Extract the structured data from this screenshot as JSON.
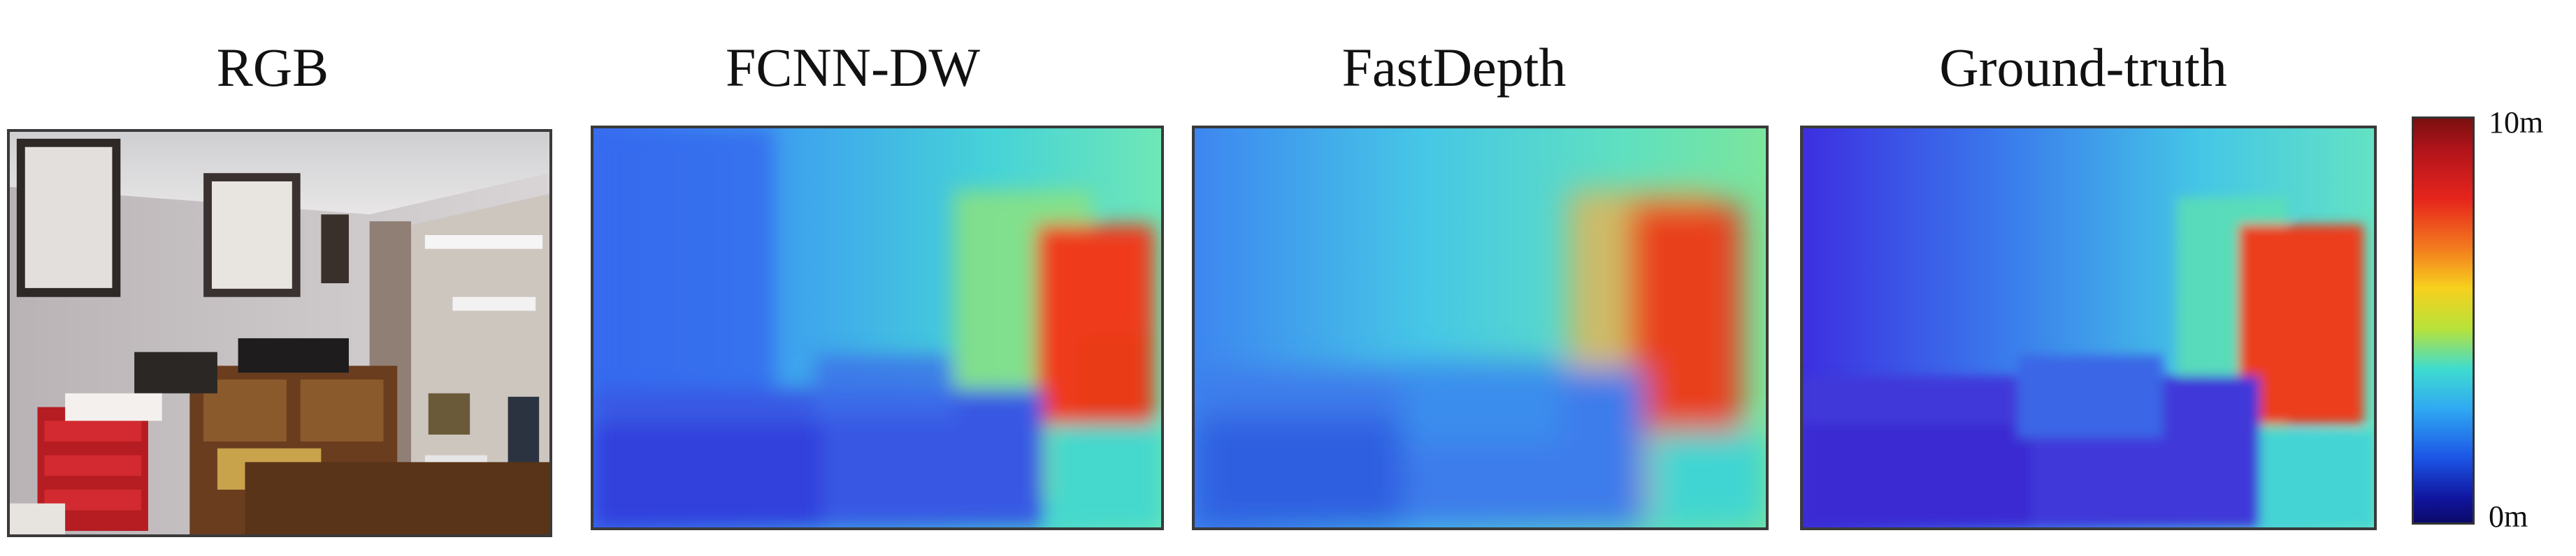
{
  "titles": {
    "rgb": "RGB",
    "fcnn": "FCNN-DW",
    "fastdepth": "FastDepth",
    "gt": "Ground-truth"
  },
  "colorbar": {
    "max_label": "10m",
    "min_label": "0m"
  },
  "colors": {
    "near": "#1c2ee0",
    "mid": "#35c8e8",
    "far": "#e8281c"
  }
}
